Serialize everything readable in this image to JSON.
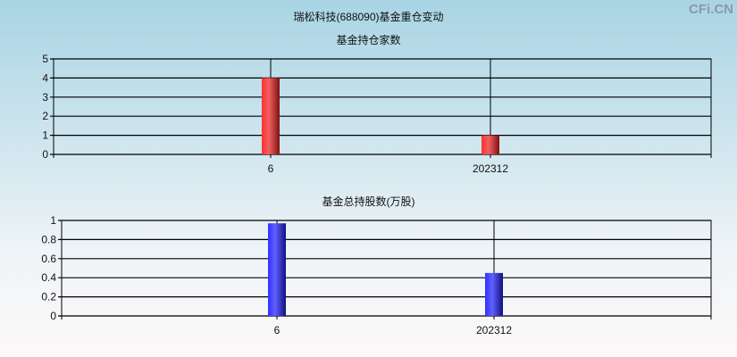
{
  "title": "瑞松科技(688090)基金重仓变动",
  "watermark": "CFi.CN",
  "chart_data": [
    {
      "type": "bar",
      "title": "基金持仓家数",
      "categories": [
        "6",
        "202312"
      ],
      "values": [
        4,
        1
      ],
      "ylim": [
        0,
        5
      ],
      "yticks": [
        "0",
        "1",
        "2",
        "3",
        "4",
        "5"
      ],
      "grid": true,
      "color": "#e02020"
    },
    {
      "type": "bar",
      "title": "基金总持股数(万股)",
      "categories": [
        "6",
        "202312"
      ],
      "values": [
        0.97,
        0.45
      ],
      "ylim": [
        0,
        1
      ],
      "yticks": [
        "0",
        "0.2",
        "0.4",
        "0.6",
        "0.8",
        "1"
      ],
      "grid": true,
      "color": "#3030e0"
    }
  ]
}
